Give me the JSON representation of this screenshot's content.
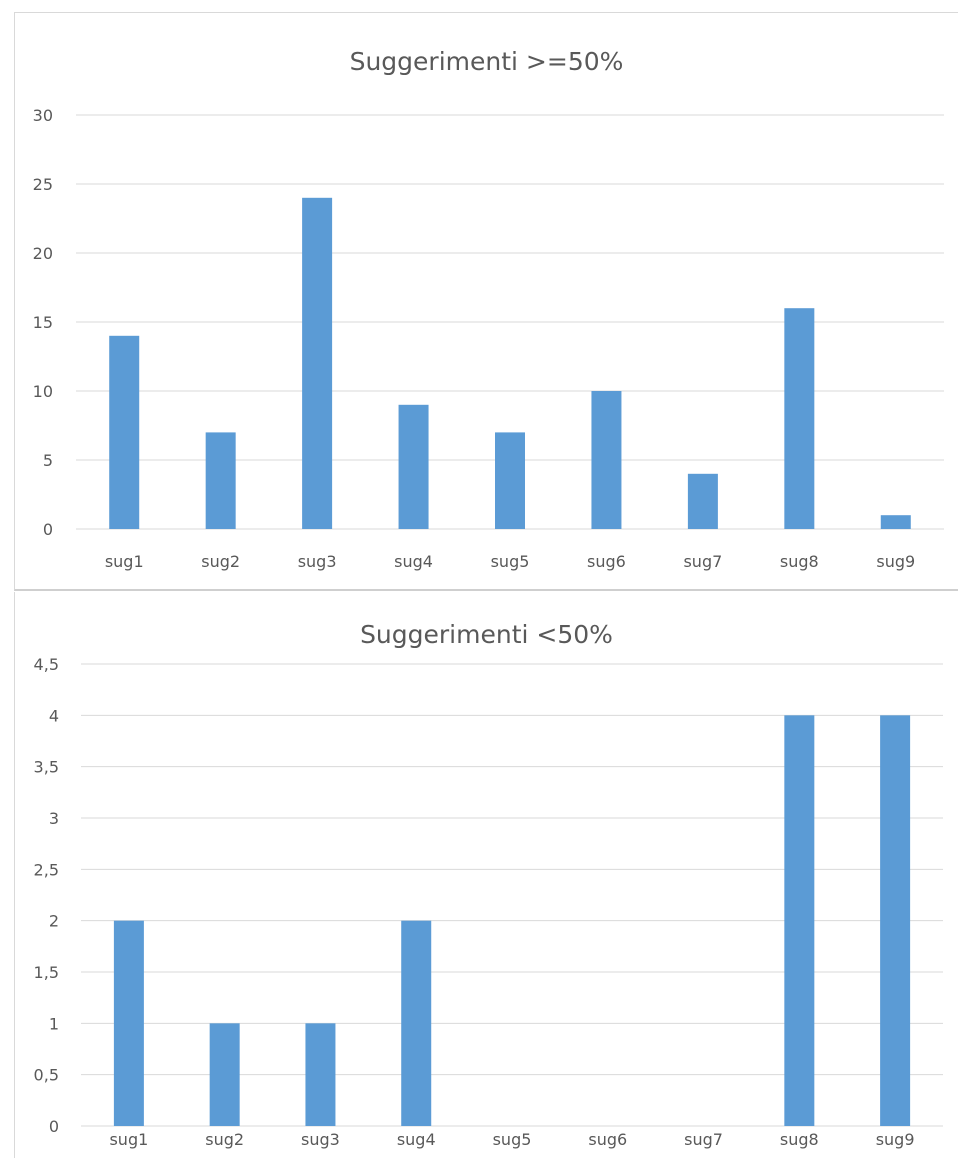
{
  "chart_data": [
    {
      "type": "bar",
      "title": "Suggerimenti >=50%",
      "xlabel": "",
      "ylabel": "",
      "categories": [
        "sug1",
        "sug2",
        "sug3",
        "sug4",
        "sug5",
        "sug6",
        "sug7",
        "sug8",
        "sug9"
      ],
      "values": [
        14,
        7,
        24,
        9,
        7,
        10,
        4,
        16,
        1
      ],
      "ylim": [
        0,
        30
      ],
      "yticks": [
        "0",
        "5",
        "10",
        "15",
        "20",
        "25",
        "30"
      ],
      "grid": true,
      "legend": "none",
      "bar_color": "#5b9bd5"
    },
    {
      "type": "bar",
      "title": "Suggerimenti <50%",
      "xlabel": "",
      "ylabel": "",
      "categories": [
        "sug1",
        "sug2",
        "sug3",
        "sug4",
        "sug5",
        "sug6",
        "sug7",
        "sug8",
        "sug9"
      ],
      "values": [
        2,
        1,
        1,
        2,
        0,
        0,
        0,
        4,
        4
      ],
      "ylim": [
        0,
        4.5
      ],
      "yticks": [
        "0",
        "0,5",
        "1",
        "1,5",
        "2",
        "2,5",
        "3",
        "3,5",
        "4",
        "4,5"
      ],
      "grid": true,
      "legend": "none",
      "bar_color": "#5b9bd5"
    }
  ]
}
